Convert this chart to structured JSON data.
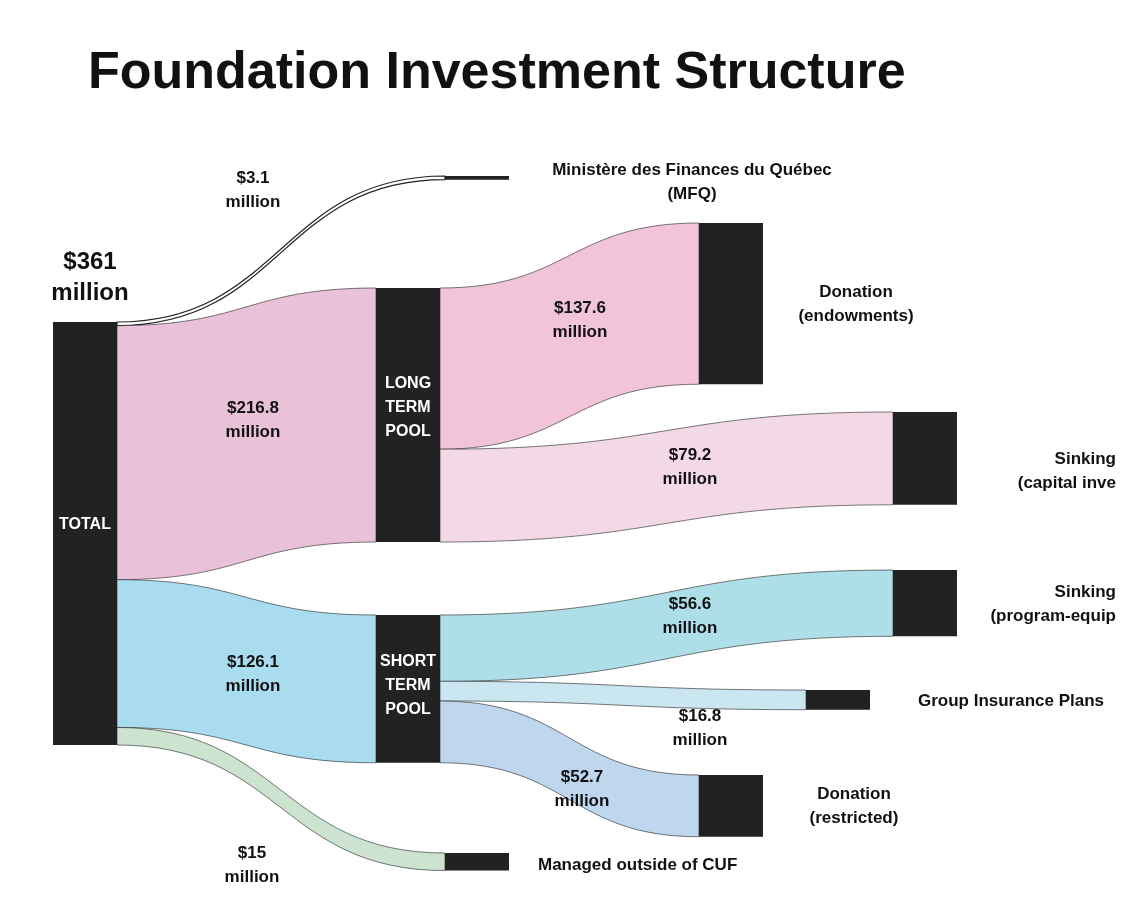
{
  "chart_data": {
    "type": "other",
    "title": "Foundation Investment Structure",
    "categories": [
      "TOTAL",
      "LONG TERM POOL",
      "SHORT TERM POOL",
      "Ministère des Finances du Québec (MFQ)",
      "Donation (endowments)",
      "Sinking (capital inve",
      "Sinking (program-equip",
      "Group Insurance Plans",
      "Donation (restricted)",
      "Managed outside of CUF"
    ],
    "colors": [
      "#222222",
      "#222222",
      "#222222",
      "#222222",
      "#222222",
      "#222222",
      "#222222",
      "#222222",
      "#222222",
      "#222222"
    ],
    "series": [
      {
        "values": [
          361,
          216.8,
          126.1,
          3.1,
          137.6,
          79.2,
          56.6,
          16.8,
          52.7,
          15
        ],
        "value_labels": [
          "$361 million",
          "$216.8 million",
          "$126.1 million",
          "$3.1 million",
          "$137.6 million",
          "$79.2 million",
          "$56.6 million",
          "$16.8 million",
          "$52.7 million",
          "$15 million"
        ],
        "colors": [
          null,
          "#e9c1d9",
          "#a9dcef",
          "#ffffff",
          "#f1c4da",
          "#f3d9e7",
          "#aedfe9",
          "#c9e6f1",
          "#bfd6ef",
          "#cce3cf"
        ]
      }
    ]
  }
}
